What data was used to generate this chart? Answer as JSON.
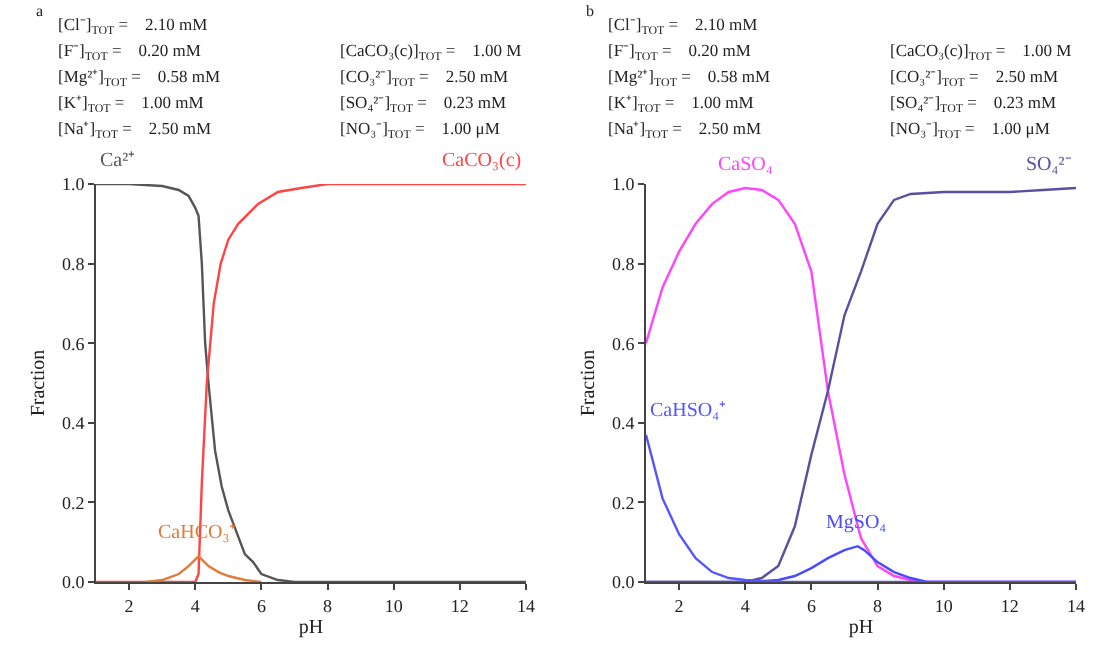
{
  "chart_data": [
    {
      "type": "line",
      "title": "a",
      "xlabel": "pH",
      "ylabel": "Fraction",
      "annotations": [
        "[Cl⁻]$_{TOT}$ =    2.10 mM",
        "[F⁻]$_{TOT}$ =    0.20 mM",
        "[Mg²⁺]$_{TOT}$ =    0.58 mM",
        "[K⁺]$_{TOT}$ =    1.00 mM",
        "[Na⁺]$_{TOT}$ =    2.50 mM",
        "[CaCO₃(c)]$_{TOT}$ =    1.00 M",
        "[CO₃²⁻]$_{TOT}$ =    2.50 mM",
        "[SO₄²⁻]$_{TOT}$ =    0.23 mM",
        "[NO₃⁻]$_{TOT}$ =    1.00 μM"
      ],
      "xlim": [
        1,
        14
      ],
      "xticks": [
        2,
        4,
        6,
        8,
        10,
        12,
        14
      ],
      "ylim": [
        0,
        1
      ],
      "yticks": [
        {
          "value": 0,
          "label": "0.0"
        },
        {
          "value": 0.2,
          "label": "0.2"
        },
        {
          "value": 0.4,
          "label": "0.4"
        },
        {
          "value": 0.6,
          "label": "0.6"
        },
        {
          "value": 0.8,
          "label": "0.8"
        },
        {
          "value": 1,
          "label": "1.0"
        }
      ],
      "grid": false,
      "legend": false,
      "series": [
        {
          "name": "Ca²⁺",
          "color": "#555555",
          "x": [
            1,
            2,
            3,
            3.5,
            3.8,
            4.0,
            4.1,
            4.2,
            4.3,
            4.4,
            4.6,
            4.8,
            5.0,
            5.5,
            5.75,
            6.0,
            6.5,
            7,
            8,
            14
          ],
          "values": [
            1.0,
            1.0,
            0.995,
            0.985,
            0.97,
            0.94,
            0.92,
            0.8,
            0.6,
            0.5,
            0.33,
            0.24,
            0.18,
            0.07,
            0.05,
            0.02,
            0.005,
            0,
            0,
            0
          ]
        },
        {
          "name": "CaCO₃(c)",
          "color": "#ff4444",
          "x": [
            1,
            4.0,
            4.1,
            4.2,
            4.35,
            4.56,
            4.77,
            5.0,
            5.3,
            5.9,
            6.5,
            7.2,
            8,
            14
          ],
          "values": [
            0,
            0,
            0.02,
            0.25,
            0.5,
            0.7,
            0.8,
            0.86,
            0.9,
            0.95,
            0.98,
            0.99,
            1.0,
            1.0
          ]
        },
        {
          "name": "CaHCO₃⁺",
          "color": "#e07b39",
          "x": [
            2.5,
            3,
            3.5,
            3.8,
            4.1,
            4.4,
            4.7,
            5,
            5.5,
            6
          ],
          "values": [
            0,
            0.005,
            0.02,
            0.04,
            0.065,
            0.04,
            0.025,
            0.015,
            0.005,
            0
          ]
        }
      ]
    },
    {
      "type": "line",
      "title": "b",
      "xlabel": "pH",
      "ylabel": "Fraction",
      "annotations": [
        "[Cl⁻]$_{TOT}$ =    2.10 mM",
        "[F⁻]$_{TOT}$ =    0.20 mM",
        "[Mg²⁺]$_{TOT}$ =    0.58 mM",
        "[K⁺]$_{TOT}$ =    1.00 mM",
        "[Na⁺]$_{TOT}$ =    2.50 mM",
        "[CaCO₃(c)]$_{TOT}$ =    1.00 M",
        "[CO₃²⁻]$_{TOT}$ =    2.50 mM",
        "[SO₄²⁻]$_{TOT}$ =    0.23 mM",
        "[NO₃⁻]$_{TOT}$ =    1.00 μM"
      ],
      "xlim": [
        1,
        14
      ],
      "xticks": [
        2,
        4,
        6,
        8,
        10,
        12,
        14
      ],
      "ylim": [
        0,
        1
      ],
      "yticks": [
        {
          "value": 0,
          "label": "0.0"
        },
        {
          "value": 0.2,
          "label": "0.2"
        },
        {
          "value": 0.4,
          "label": "0.4"
        },
        {
          "value": 0.6,
          "label": "0.6"
        },
        {
          "value": 0.8,
          "label": "0.8"
        },
        {
          "value": 1,
          "label": "1.0"
        }
      ],
      "grid": false,
      "legend": false,
      "series": [
        {
          "name": "CaSO₄",
          "color": "#ff44ff",
          "x": [
            1,
            1.5,
            2,
            2.5,
            3,
            3.5,
            4,
            4.5,
            5,
            5.5,
            6,
            6.5,
            7,
            7.5,
            8,
            8.5,
            9,
            9.5,
            14
          ],
          "values": [
            0.6,
            0.74,
            0.83,
            0.9,
            0.95,
            0.98,
            0.99,
            0.985,
            0.96,
            0.9,
            0.78,
            0.48,
            0.27,
            0.11,
            0.04,
            0.015,
            0.005,
            0,
            0
          ]
        },
        {
          "name": "SO₄²⁻",
          "color": "#5a4fa0",
          "x": [
            1,
            4,
            4.5,
            5,
            5.5,
            6,
            6.5,
            7,
            7.5,
            8,
            8.5,
            9,
            10,
            12,
            13,
            14
          ],
          "values": [
            0,
            0,
            0.01,
            0.04,
            0.14,
            0.32,
            0.48,
            0.67,
            0.78,
            0.9,
            0.96,
            0.975,
            0.98,
            0.98,
            0.985,
            0.99
          ]
        },
        {
          "name": "MgSO₄",
          "color": "#4a4aff",
          "x": [
            1,
            4,
            4.5,
            5,
            5.5,
            6,
            6.5,
            7,
            7.4,
            7.6,
            8,
            8.5,
            9,
            9.5,
            14
          ],
          "values": [
            0,
            0,
            0.002,
            0.005,
            0.015,
            0.035,
            0.06,
            0.08,
            0.09,
            0.08,
            0.05,
            0.025,
            0.01,
            0,
            0
          ]
        },
        {
          "name": "CaHSO₄⁺",
          "color": "#5555ff",
          "x": [
            1,
            1.5,
            2,
            2.5,
            3,
            3.5,
            4,
            5,
            14
          ],
          "values": [
            0.37,
            0.21,
            0.12,
            0.06,
            0.025,
            0.01,
            0.005,
            0,
            0
          ]
        }
      ]
    }
  ]
}
